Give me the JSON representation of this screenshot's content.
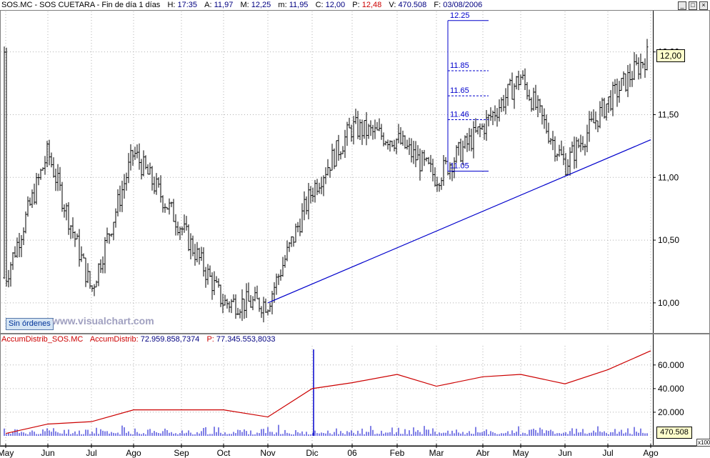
{
  "header": {
    "symbol": "SOS.MC - SOS CUETARA - Fin de día 1 días",
    "h_label": "H:",
    "h": "17:35",
    "a_label": "A:",
    "a": "11,97",
    "m_label": "M:",
    "m": "12,25",
    "mn_label": "m:",
    "mn": "11,95",
    "c_label": "C:",
    "c": "12,00",
    "p_label": "P:",
    "p": "12,48",
    "v_label": "V:",
    "v": "470.508",
    "f_label": "F:",
    "f": "03/08/2006"
  },
  "window_buttons": [
    "_",
    "□",
    "×"
  ],
  "indicator_header": {
    "name": "AccumDistrib_SOS.MC",
    "label": "AccumDistrib:",
    "value": "72.959.858,7374",
    "p_label": "P:",
    "p": "77.345.553,8033"
  },
  "orders_button": "Sin órdenes",
  "watermark": "www.visualchart.com",
  "current_price": "12,00",
  "current_volume": "470.508",
  "scale_factor": "x100",
  "colors": {
    "bars": "#000000",
    "trendline": "#0000cc",
    "accum": "#cc0000",
    "volume": "#0000cc",
    "grid": "#b0b0b0"
  },
  "chart_data": {
    "type": "line",
    "price_panel": {
      "y_ticks": [
        "10,00",
        "10,50",
        "11,00",
        "11,50",
        "12,00"
      ],
      "y_tick_values": [
        10.0,
        10.5,
        11.0,
        11.5,
        12.0
      ],
      "ylim": [
        9.8,
        12.3
      ],
      "series": [
        {
          "name": "SOS.MC",
          "x": [
            "May",
            "Jun",
            "Jul",
            "Ago",
            "Sep",
            "Oct",
            "Nov",
            "Dic",
            "06",
            "Feb",
            "Mar",
            "Abr",
            "May",
            "Jun",
            "Jul",
            "Ago"
          ],
          "values": [
            10.2,
            11.2,
            10.1,
            11.2,
            10.6,
            10.0,
            10.0,
            10.9,
            11.4,
            11.3,
            11.0,
            11.4,
            11.8,
            11.1,
            11.6,
            12.0
          ]
        }
      ],
      "trendline": {
        "from": [
          "Nov",
          10.0
        ],
        "to": [
          "Ago",
          11.3
        ]
      },
      "fibonacci_levels": [
        "12.25",
        "11.85",
        "11.65",
        "11.46",
        "11.05"
      ],
      "fibonacci_values": [
        12.25,
        11.85,
        11.65,
        11.46,
        11.05
      ]
    },
    "indicator_panel": {
      "y_ticks": [
        "20.000",
        "40.000",
        "60.000"
      ],
      "y_tick_values": [
        20000,
        40000,
        60000
      ],
      "ylim": [
        0,
        75000
      ],
      "series": [
        {
          "name": "AccumDistrib_SOS.MC",
          "x": [
            "May",
            "Jun",
            "Jul",
            "Ago",
            "Sep",
            "Oct",
            "Nov",
            "Dic",
            "06",
            "Feb",
            "Mar",
            "Abr",
            "May",
            "Jun",
            "Jul",
            "Ago"
          ],
          "values": [
            2000,
            10000,
            12000,
            22000,
            22000,
            22000,
            16000,
            40000,
            45000,
            52000,
            42000,
            50000,
            52000,
            44000,
            56000,
            72000
          ]
        }
      ]
    },
    "x_tick_labels": [
      "May",
      "Jun",
      "Jul",
      "Ago",
      "Sep",
      "Oct",
      "Nov",
      "Dic",
      "06",
      "Feb",
      "Mar",
      "Abr",
      "May",
      "Jun",
      "Jul",
      "Ago"
    ],
    "grid": true
  }
}
